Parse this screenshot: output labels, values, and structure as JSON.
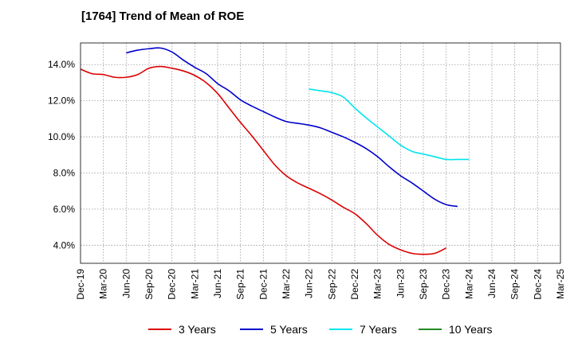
{
  "chart_data": {
    "type": "line",
    "title": "[1764]  Trend of Mean of ROE",
    "xlabel": "",
    "ylabel": "",
    "x_tick_labels": [
      "Dec-19",
      "Mar-20",
      "Jun-20",
      "Sep-20",
      "Dec-20",
      "Mar-21",
      "Jun-21",
      "Sep-21",
      "Dec-21",
      "Mar-22",
      "Jun-22",
      "Sep-22",
      "Dec-22",
      "Mar-23",
      "Jun-23",
      "Sep-23",
      "Dec-23",
      "Mar-24",
      "Jun-24",
      "Sep-24",
      "Dec-24",
      "Mar-25"
    ],
    "y_tick_values": [
      4.0,
      6.0,
      8.0,
      10.0,
      12.0,
      14.0
    ],
    "y_tick_labels": [
      "4.0%",
      "6.0%",
      "8.0%",
      "10.0%",
      "12.0%",
      "14.0%"
    ],
    "ylim": [
      3.0,
      15.2
    ],
    "grid": true,
    "legend_position": "bottom",
    "series": [
      {
        "name": "3 Years",
        "color": "#dd0000",
        "values": [
          13.75,
          13.5,
          13.45,
          13.3,
          13.3,
          13.45,
          13.8,
          13.9,
          13.8,
          13.65,
          13.4,
          13.0,
          12.4,
          11.6,
          10.8,
          10.05,
          9.25,
          8.45,
          7.85,
          7.45,
          7.15,
          6.85,
          6.5,
          6.1,
          5.75,
          5.2,
          4.55,
          4.05,
          3.75,
          3.55,
          3.5,
          3.55,
          3.85
        ]
      },
      {
        "name": "5 Years",
        "color": "#0000cc",
        "values": [
          null,
          null,
          null,
          null,
          14.65,
          14.8,
          14.88,
          14.92,
          14.7,
          14.25,
          13.85,
          13.5,
          12.95,
          12.55,
          12.05,
          11.7,
          11.4,
          11.1,
          10.85,
          10.75,
          10.65,
          10.5,
          10.25,
          10.0,
          9.7,
          9.35,
          8.9,
          8.35,
          7.85,
          7.45,
          7.0,
          6.55,
          6.25,
          6.15
        ]
      },
      {
        "name": "7 Years",
        "color": "#00e5ee",
        "values": [
          null,
          null,
          null,
          null,
          null,
          null,
          null,
          null,
          null,
          null,
          null,
          null,
          null,
          null,
          null,
          null,
          null,
          null,
          null,
          null,
          12.65,
          12.55,
          12.45,
          12.2,
          11.6,
          11.05,
          10.55,
          10.05,
          9.55,
          9.2,
          9.05,
          8.9,
          8.75,
          8.75,
          8.75
        ]
      },
      {
        "name": "10 Years",
        "color": "#228b22",
        "values": []
      }
    ]
  }
}
